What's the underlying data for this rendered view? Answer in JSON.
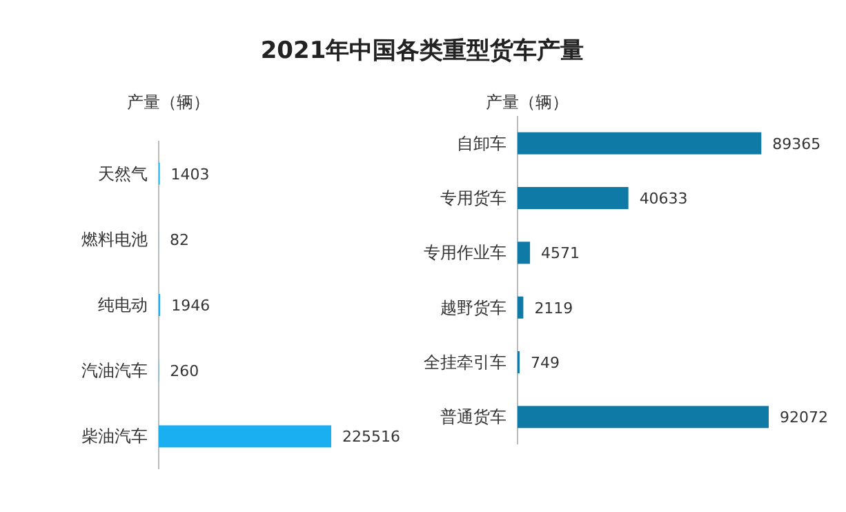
{
  "chart_data": [
    {
      "type": "bar",
      "orientation": "horizontal",
      "title": "2021年中国各类重型货车产量",
      "xlabel": "产量（辆）",
      "categories": [
        "天然气",
        "燃料电池",
        "纯电动",
        "汽油汽车",
        "柴油汽车"
      ],
      "values": [
        1403,
        82,
        1946,
        260,
        225516
      ],
      "color": "#1aaff0",
      "data_labels": true
    },
    {
      "type": "bar",
      "orientation": "horizontal",
      "xlabel": "产量（辆）",
      "categories": [
        "自卸车",
        "专用货车",
        "专用作业车",
        "越野货车",
        "全挂牵引车",
        "普通货车"
      ],
      "values": [
        89365,
        40633,
        4571,
        2119,
        749,
        92072
      ],
      "color": "#0f7aa6",
      "data_labels": true
    }
  ]
}
